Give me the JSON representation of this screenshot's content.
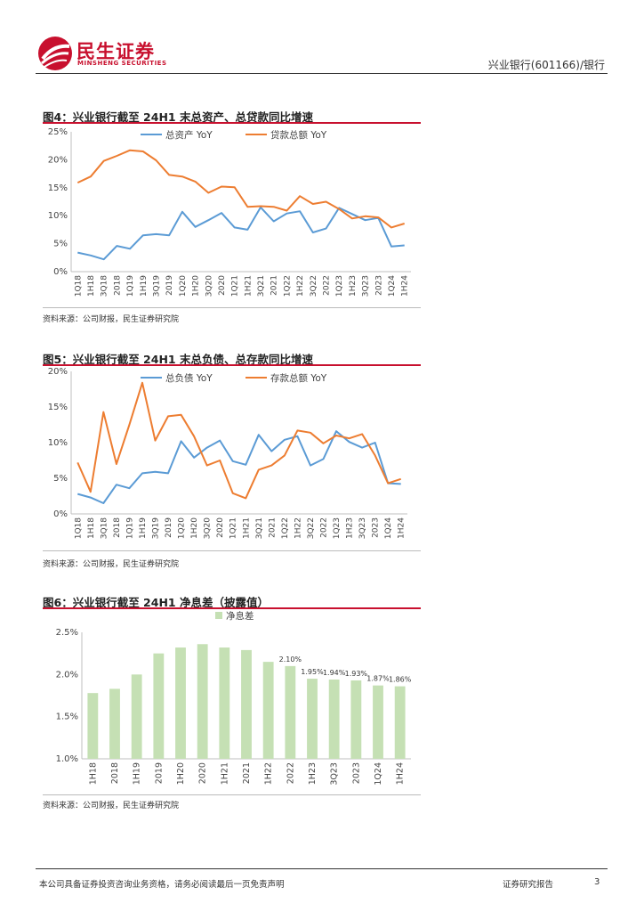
{
  "header": {
    "brand_cn": "民生证券",
    "brand_en": "MINSHENG SECURITIES",
    "right_text": "兴业银行(601166)/银行"
  },
  "footer": {
    "disclaimer": "本公司具备证券投资咨询业务资格，请务必阅读最后一页免责声明",
    "report_type": "证券研究报告",
    "page": "3"
  },
  "colors": {
    "brand": "#c8102e",
    "blue": "#5b9bd5",
    "orange": "#ed7d31",
    "green": "#c5e0b4"
  },
  "chart_data": [
    {
      "type": "line",
      "title": "图4：兴业银行截至 24H1 末总资产、总贷款同比增速",
      "source": "资料来源：公司财报，民生证券研究院",
      "categories": [
        "1Q18",
        "1H18",
        "3Q18",
        "2018",
        "1Q19",
        "1H19",
        "3Q19",
        "2019",
        "1Q20",
        "1H20",
        "3Q20",
        "2020",
        "1Q21",
        "1H21",
        "3Q21",
        "2021",
        "1Q22",
        "1H22",
        "3Q22",
        "2022",
        "1Q23",
        "1H23",
        "3Q23",
        "2023",
        "1Q24",
        "1H24"
      ],
      "y_ticks": [
        "0%",
        "5%",
        "10%",
        "15%",
        "20%",
        "25%"
      ],
      "ylim": [
        0,
        25
      ],
      "series": [
        {
          "name": "总资产 YoY",
          "color": "#5b9bd5",
          "values": [
            3.4,
            2.9,
            2.2,
            4.6,
            4.1,
            6.5,
            6.7,
            6.5,
            10.7,
            8.0,
            9.2,
            10.5,
            7.9,
            7.5,
            11.5,
            9.0,
            10.4,
            10.8,
            7.0,
            7.7,
            11.4,
            10.3,
            9.2,
            9.6,
            4.5,
            4.7
          ]
        },
        {
          "name": "贷款总额 YoY",
          "color": "#ed7d31",
          "values": [
            15.9,
            17.0,
            19.8,
            20.7,
            21.7,
            21.5,
            19.9,
            17.3,
            17.0,
            16.1,
            14.1,
            15.2,
            15.1,
            11.6,
            11.7,
            11.6,
            10.9,
            13.5,
            12.1,
            12.5,
            11.2,
            9.5,
            9.9,
            9.7,
            7.9,
            8.6
          ]
        }
      ]
    },
    {
      "type": "line",
      "title": "图5：兴业银行截至 24H1 末总负债、总存款同比增速",
      "source": "资料来源：公司财报，民生证券研究院",
      "categories": [
        "1Q18",
        "1H18",
        "3Q18",
        "2018",
        "1Q19",
        "1H19",
        "3Q19",
        "2019",
        "1Q20",
        "1H20",
        "3Q20",
        "2020",
        "1Q21",
        "1H21",
        "3Q21",
        "2021",
        "1Q22",
        "1H22",
        "3Q22",
        "2022",
        "1Q23",
        "1H23",
        "3Q23",
        "2023",
        "1Q24",
        "1H24"
      ],
      "y_ticks": [
        "0%",
        "5%",
        "10%",
        "15%",
        "20%"
      ],
      "ylim": [
        0,
        20
      ],
      "series": [
        {
          "name": "总负债 YoY",
          "color": "#5b9bd5",
          "values": [
            2.8,
            2.3,
            1.5,
            4.1,
            3.6,
            5.7,
            5.9,
            5.7,
            10.2,
            7.9,
            9.3,
            10.3,
            7.4,
            6.9,
            11.1,
            8.8,
            10.4,
            10.9,
            6.8,
            7.7,
            11.6,
            10.1,
            9.3,
            10.0,
            4.3,
            4.2
          ]
        },
        {
          "name": "存款总额 YoY",
          "color": "#ed7d31",
          "values": [
            7.2,
            3.1,
            14.3,
            7.0,
            12.5,
            18.4,
            10.3,
            13.7,
            13.9,
            10.9,
            6.8,
            7.5,
            2.9,
            2.2,
            6.2,
            6.8,
            8.2,
            11.7,
            11.4,
            9.9,
            11.0,
            10.6,
            11.2,
            8.2,
            4.3,
            4.9
          ]
        }
      ]
    },
    {
      "type": "bar",
      "title": "图6：兴业银行截至 24H1 净息差（披露值）",
      "source": "资料来源：公司财报，民生证券研究院",
      "legend": "净息差",
      "categories": [
        "1H18",
        "2018",
        "1H19",
        "2019",
        "1H20",
        "2020",
        "1H21",
        "2021",
        "1H22",
        "2022",
        "1H23",
        "3Q23",
        "2023",
        "1Q24",
        "1H24"
      ],
      "values": [
        1.78,
        1.83,
        2.0,
        2.25,
        2.32,
        2.36,
        2.32,
        2.29,
        2.15,
        2.1,
        1.95,
        1.94,
        1.93,
        1.87,
        1.86
      ],
      "data_labels": [
        "",
        "",
        "",
        "",
        "",
        "",
        "",
        "",
        "",
        "2.10%",
        "1.95%",
        "1.94%",
        "1.93%",
        "1.87%",
        "1.86%"
      ],
      "y_ticks": [
        "1.0%",
        "1.5%",
        "2.0%",
        "2.5%"
      ],
      "ylim": [
        1.0,
        2.5
      ],
      "color": "#c5e0b4"
    }
  ]
}
